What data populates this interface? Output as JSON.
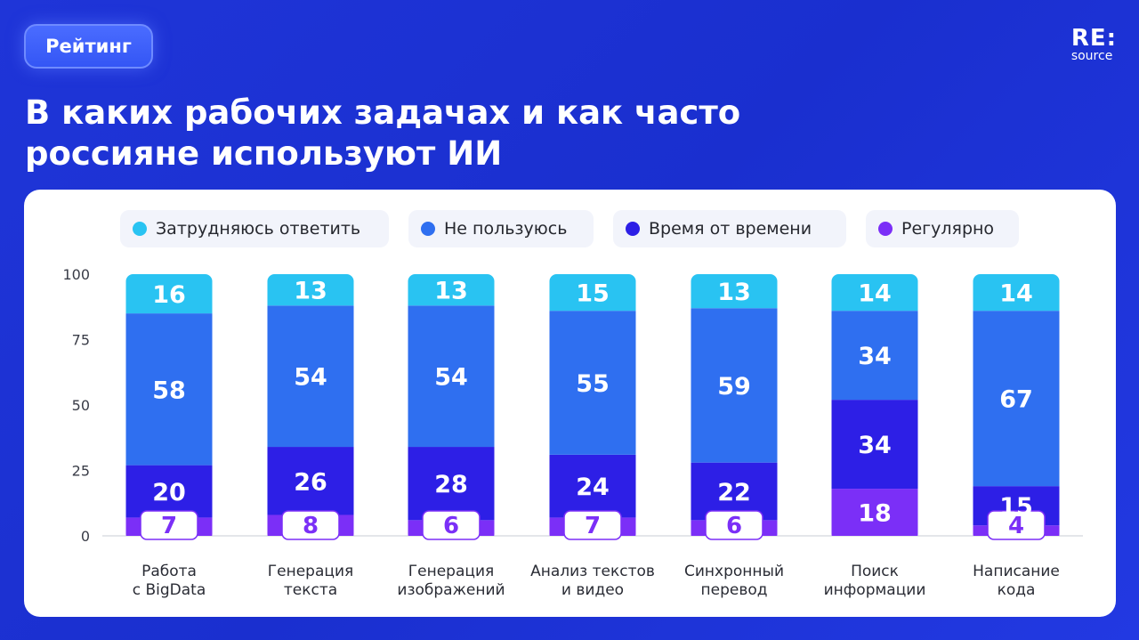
{
  "badge": "Рейтинг",
  "logo": {
    "line1": "RE:",
    "line2": "source"
  },
  "title_line1": "В каких рабочих задачах и как часто",
  "title_line2": "россияне используют ИИ",
  "chart_data": {
    "type": "bar",
    "stacked": true,
    "ylim": [
      0,
      100
    ],
    "yticks": [
      0,
      25,
      50,
      75,
      100
    ],
    "categories": [
      [
        "Работа",
        "с BigData"
      ],
      [
        "Генерация",
        "текста"
      ],
      [
        "Генерация",
        "изображений"
      ],
      [
        "Анализ текстов",
        "и видео"
      ],
      [
        "Синхронный",
        "перевод"
      ],
      [
        "Поиск",
        "информации"
      ],
      [
        "Написание",
        "кода"
      ]
    ],
    "series": [
      {
        "name": "Регулярно",
        "color": "#7b2ff7",
        "values": [
          7,
          8,
          6,
          7,
          6,
          18,
          4
        ]
      },
      {
        "name": "Время от времени",
        "color": "#2d1fe6",
        "values": [
          20,
          26,
          28,
          24,
          22,
          34,
          15
        ]
      },
      {
        "name": "Не пользуюсь",
        "color": "#2f6ff0",
        "values": [
          58,
          54,
          54,
          55,
          59,
          34,
          67
        ]
      },
      {
        "name": "Затрудняюсь ответить",
        "color": "#29c3f2",
        "values": [
          16,
          13,
          13,
          15,
          13,
          14,
          14
        ]
      }
    ],
    "legend_order": [
      "Затрудняюсь ответить",
      "Не пользуюсь",
      "Время от времени",
      "Регулярно"
    ],
    "legend_position": "top"
  }
}
